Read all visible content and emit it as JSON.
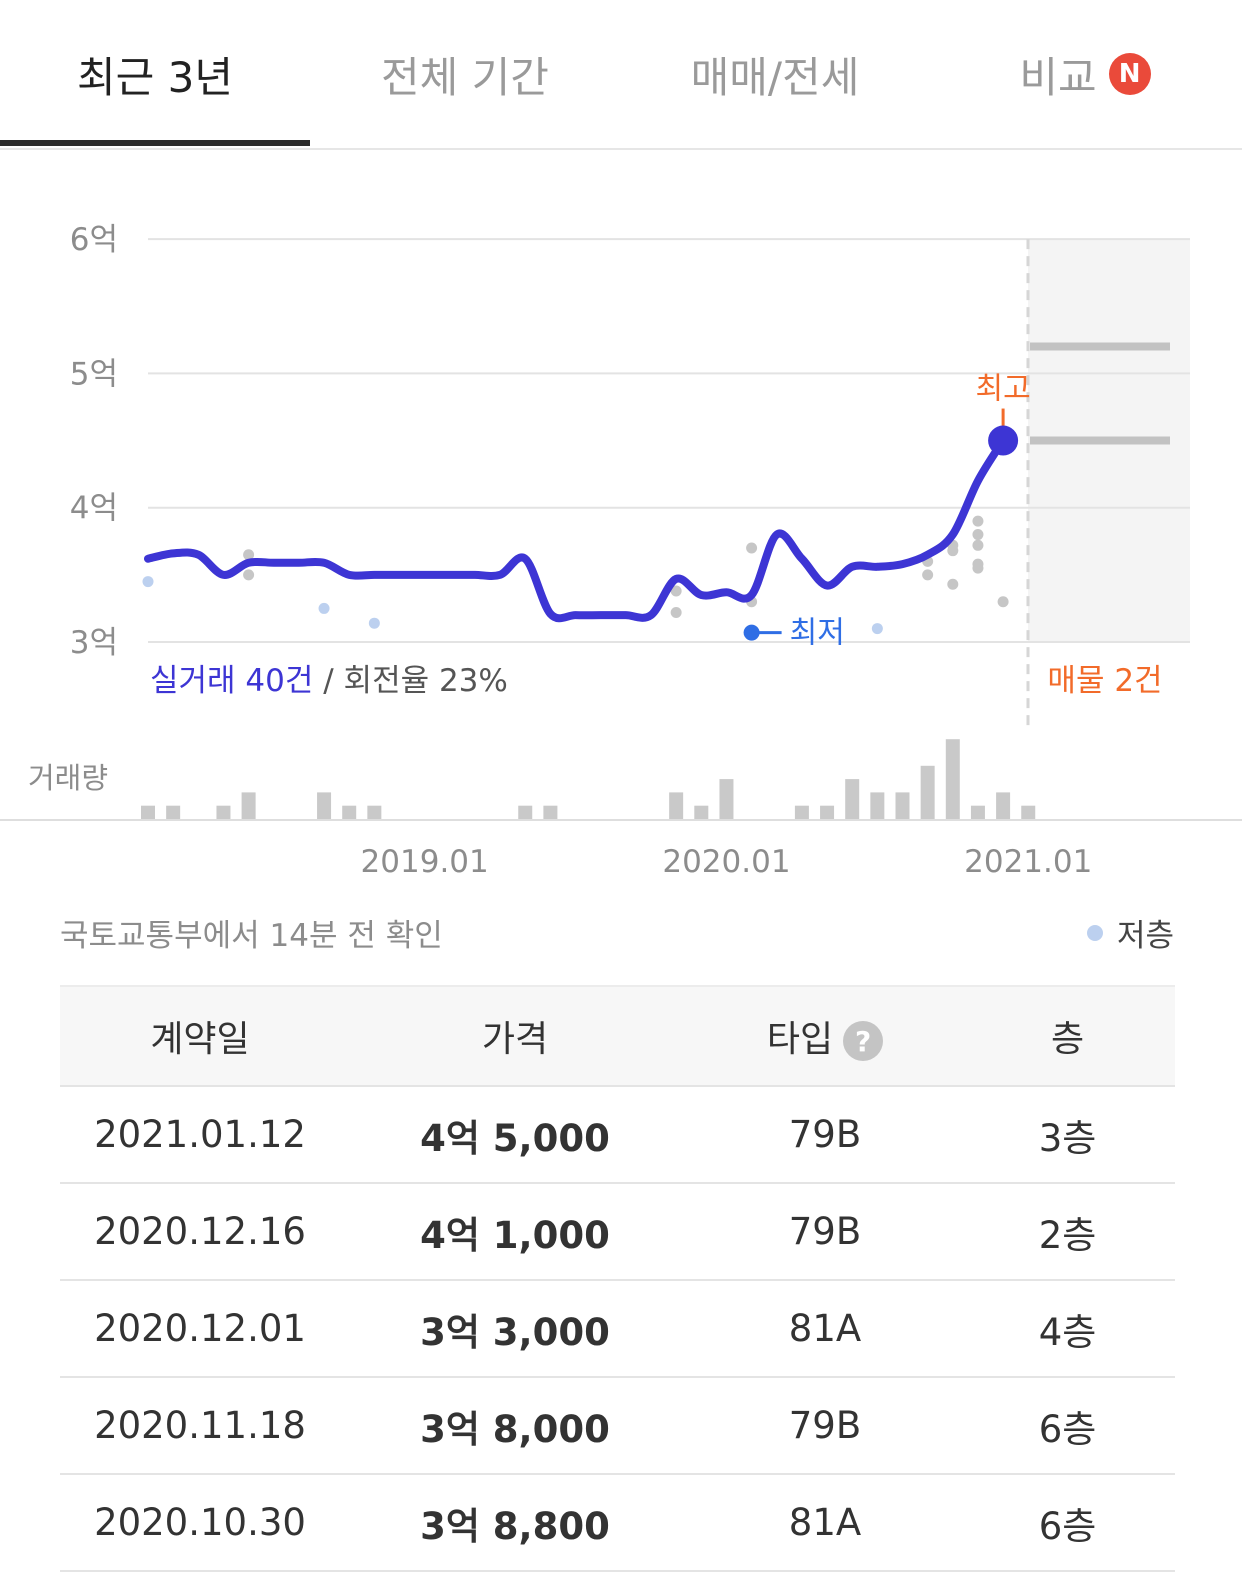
{
  "tabs": [
    {
      "label": "최근 3년"
    },
    {
      "label": "전체 기간"
    },
    {
      "label": "매매/전세"
    },
    {
      "label": "비교",
      "badge": "N"
    }
  ],
  "colors": {
    "line": "#3d35d4",
    "highest": "#f26b2a",
    "lowest": "#2f6ee5",
    "dot_low_floor": "#bcd0ef",
    "dot": "#c6c6c6",
    "volume_bar": "#c9c9c9",
    "badge": "#ea4a3a"
  },
  "chart_data": {
    "type": "line",
    "y_tick_labels": [
      "6억",
      "5억",
      "4억",
      "3억"
    ],
    "y_ticks": [
      6,
      5,
      4,
      3
    ],
    "ylim": [
      3,
      6
    ],
    "x_tick_labels": [
      "2019.01",
      "2020.01",
      "2021.01"
    ],
    "x_range": [
      "2018-02",
      "2021-06"
    ],
    "series": [
      {
        "values": [
          {
            "x": "2018-02",
            "y": 3.62
          },
          {
            "x": "2018-03",
            "y": 3.66
          },
          {
            "x": "2018-04",
            "y": 3.65
          },
          {
            "x": "2018-05",
            "y": 3.5
          },
          {
            "x": "2018-06",
            "y": 3.59
          },
          {
            "x": "2018-07",
            "y": 3.59
          },
          {
            "x": "2018-08",
            "y": 3.59
          },
          {
            "x": "2018-09",
            "y": 3.59
          },
          {
            "x": "2018-10",
            "y": 3.5
          },
          {
            "x": "2018-11",
            "y": 3.5
          },
          {
            "x": "2018-12",
            "y": 3.5
          },
          {
            "x": "2019-01",
            "y": 3.5
          },
          {
            "x": "2019-02",
            "y": 3.5
          },
          {
            "x": "2019-03",
            "y": 3.5
          },
          {
            "x": "2019-04",
            "y": 3.5
          },
          {
            "x": "2019-05",
            "y": 3.62
          },
          {
            "x": "2019-06",
            "y": 3.21
          },
          {
            "x": "2019-07",
            "y": 3.2
          },
          {
            "x": "2019-08",
            "y": 3.2
          },
          {
            "x": "2019-09",
            "y": 3.2
          },
          {
            "x": "2019-10",
            "y": 3.2
          },
          {
            "x": "2019-11",
            "y": 3.47
          },
          {
            "x": "2019-12",
            "y": 3.35
          },
          {
            "x": "2020-01",
            "y": 3.37
          },
          {
            "x": "2020-02",
            "y": 3.35
          },
          {
            "x": "2020-03",
            "y": 3.8
          },
          {
            "x": "2020-04",
            "y": 3.62
          },
          {
            "x": "2020-05",
            "y": 3.42
          },
          {
            "x": "2020-06",
            "y": 3.56
          },
          {
            "x": "2020-07",
            "y": 3.56
          },
          {
            "x": "2020-08",
            "y": 3.58
          },
          {
            "x": "2020-09",
            "y": 3.65
          },
          {
            "x": "2020-10",
            "y": 3.8
          },
          {
            "x": "2020-11",
            "y": 4.2
          },
          {
            "x": "2020-12",
            "y": 4.5
          }
        ]
      }
    ],
    "scatter_low_floor": [
      {
        "x": "2018-02",
        "y": 3.45
      },
      {
        "x": "2018-09",
        "y": 3.25
      },
      {
        "x": "2018-11",
        "y": 3.14
      },
      {
        "x": "2020-07",
        "y": 3.1
      }
    ],
    "scatter_other": [
      {
        "x": "2018-06",
        "y": 3.65
      },
      {
        "x": "2018-06",
        "y": 3.5
      },
      {
        "x": "2019-11",
        "y": 3.38
      },
      {
        "x": "2019-11",
        "y": 3.22
      },
      {
        "x": "2020-02",
        "y": 3.7
      },
      {
        "x": "2020-02",
        "y": 3.3
      },
      {
        "x": "2020-09",
        "y": 3.6
      },
      {
        "x": "2020-09",
        "y": 3.5
      },
      {
        "x": "2020-10",
        "y": 3.72
      },
      {
        "x": "2020-10",
        "y": 3.68
      },
      {
        "x": "2020-10",
        "y": 3.43
      },
      {
        "x": "2020-11",
        "y": 3.9
      },
      {
        "x": "2020-11",
        "y": 3.8
      },
      {
        "x": "2020-11",
        "y": 3.72
      },
      {
        "x": "2020-11",
        "y": 3.58
      },
      {
        "x": "2020-11",
        "y": 3.55
      },
      {
        "x": "2020-12",
        "y": 3.3
      }
    ],
    "highest": {
      "x": "2020-12",
      "y": 4.5,
      "label": "최고"
    },
    "lowest": {
      "x": "2020-02",
      "y": 3.07,
      "label": "최저"
    },
    "listings": {
      "label": "매물 2건",
      "prices": [
        5.2,
        4.5
      ]
    },
    "summary": {
      "trades": "실거래 40건",
      "sep": " / ",
      "turnover": "회전율 23%"
    },
    "volume_label": "거래량",
    "volume": [
      {
        "x": "2018-02",
        "v": 1
      },
      {
        "x": "2018-03",
        "v": 1
      },
      {
        "x": "2018-05",
        "v": 1
      },
      {
        "x": "2018-06",
        "v": 2
      },
      {
        "x": "2018-09",
        "v": 2
      },
      {
        "x": "2018-10",
        "v": 1
      },
      {
        "x": "2018-11",
        "v": 1
      },
      {
        "x": "2019-05",
        "v": 1
      },
      {
        "x": "2019-06",
        "v": 1
      },
      {
        "x": "2019-11",
        "v": 2
      },
      {
        "x": "2019-12",
        "v": 1
      },
      {
        "x": "2020-01",
        "v": 3
      },
      {
        "x": "2020-04",
        "v": 1
      },
      {
        "x": "2020-05",
        "v": 1
      },
      {
        "x": "2020-06",
        "v": 3
      },
      {
        "x": "2020-07",
        "v": 2
      },
      {
        "x": "2020-08",
        "v": 2
      },
      {
        "x": "2020-09",
        "v": 4
      },
      {
        "x": "2020-10",
        "v": 6
      },
      {
        "x": "2020-11",
        "v": 1
      },
      {
        "x": "2020-12",
        "v": 2
      },
      {
        "x": "2021-01",
        "v": 1
      }
    ]
  },
  "source_text": "국토교통부에서 14분 전 확인",
  "legend_label": "저층",
  "table": {
    "headers": [
      "계약일",
      "가격",
      "타입",
      "층"
    ],
    "help_icon": "?",
    "rows": [
      [
        "2021.01.12",
        "4억 5,000",
        "79B",
        "3층"
      ],
      [
        "2020.12.16",
        "4억 1,000",
        "79B",
        "2층"
      ],
      [
        "2020.12.01",
        "3억 3,000",
        "81A",
        "4층"
      ],
      [
        "2020.11.18",
        "3억 8,000",
        "79B",
        "6층"
      ],
      [
        "2020.10.30",
        "3억 8,800",
        "81A",
        "6층"
      ]
    ]
  }
}
